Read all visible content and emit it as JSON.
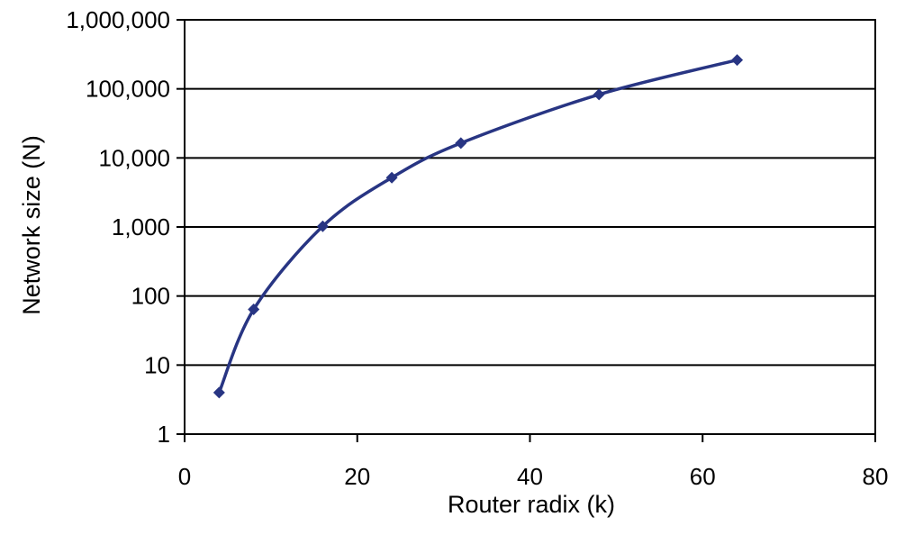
{
  "chart_data": {
    "type": "line",
    "title": "",
    "xlabel": "Router radix (k)",
    "ylabel": "Network size (N)",
    "xlim": [
      0,
      80
    ],
    "ylim": [
      1,
      1000000
    ],
    "yscale": "log",
    "grid": "horizontal major gridlines",
    "legend": "none",
    "x_ticks": [
      {
        "value": 0,
        "label": "0"
      },
      {
        "value": 20,
        "label": "20"
      },
      {
        "value": 40,
        "label": "40"
      },
      {
        "value": 60,
        "label": "60"
      },
      {
        "value": 80,
        "label": "80"
      }
    ],
    "y_ticks": [
      {
        "value": 1,
        "label": "1"
      },
      {
        "value": 10,
        "label": "10"
      },
      {
        "value": 100,
        "label": "100"
      },
      {
        "value": 1000,
        "label": "1,000"
      },
      {
        "value": 10000,
        "label": "10,000"
      },
      {
        "value": 100000,
        "label": "100,000"
      },
      {
        "value": 1000000,
        "label": "1,000,000"
      }
    ],
    "series": [
      {
        "color": "#283583",
        "marker": "diamond",
        "smooth": true,
        "points": [
          {
            "x": 4,
            "y": 4
          },
          {
            "x": 8,
            "y": 64
          },
          {
            "x": 16,
            "y": 1024
          },
          {
            "x": 24,
            "y": 5184
          },
          {
            "x": 32,
            "y": 16384
          },
          {
            "x": 48,
            "y": 82944
          },
          {
            "x": 64,
            "y": 262144
          }
        ]
      }
    ]
  }
}
